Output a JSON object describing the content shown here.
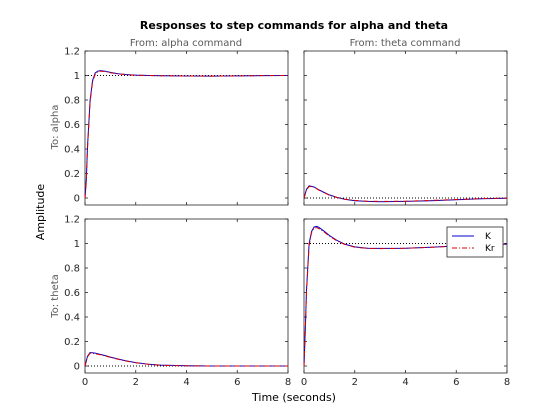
{
  "chart_data": {
    "type": "line",
    "title": "Responses to step commands for alpha and theta",
    "xlabel": "Time (seconds)",
    "ylabel": "Amplitude",
    "column_titles": [
      "From: alpha command",
      "From: theta command"
    ],
    "row_titles": [
      "To: alpha",
      "To: theta"
    ],
    "xlim": [
      0,
      8
    ],
    "xticks": [
      0,
      2,
      4,
      6,
      8
    ],
    "ylim": [
      -0.05,
      1.2
    ],
    "yticks": [
      0,
      0.2,
      0.4,
      0.6,
      0.8,
      1,
      1.2
    ],
    "grid": false,
    "legend": {
      "placement": "top-right of lower-right panel",
      "entries": [
        {
          "label": "K",
          "color": "#0000cc",
          "style": "solid"
        },
        {
          "label": "Kr",
          "color": "#dd0000",
          "style": "dashdot"
        }
      ]
    },
    "panels": [
      {
        "row": 0,
        "col": 0,
        "reference": 1,
        "series": [
          {
            "name": "K",
            "x": [
              0,
              0.05,
              0.1,
              0.2,
              0.3,
              0.4,
              0.5,
              0.6,
              0.8,
              1.0,
              1.3,
              1.6,
              2.0,
              2.5,
              3.0,
              4.0,
              5.0,
              6.0,
              7.0,
              8.0
            ],
            "y": [
              0,
              0.15,
              0.42,
              0.8,
              0.96,
              1.02,
              1.035,
              1.04,
              1.035,
              1.025,
              1.015,
              1.008,
              1.003,
              1.0,
              0.998,
              0.996,
              0.995,
              0.997,
              0.999,
              1.0
            ]
          },
          {
            "name": "Kr",
            "x": [
              0,
              0.05,
              0.1,
              0.2,
              0.3,
              0.4,
              0.5,
              0.6,
              0.8,
              1.0,
              1.3,
              1.6,
              2.0,
              2.5,
              3.0,
              4.0,
              5.0,
              6.0,
              7.0,
              8.0
            ],
            "y": [
              0,
              0.13,
              0.4,
              0.78,
              0.95,
              1.01,
              1.03,
              1.035,
              1.032,
              1.022,
              1.013,
              1.007,
              1.002,
              1.0,
              0.998,
              0.996,
              0.995,
              0.997,
              0.999,
              1.0
            ]
          }
        ]
      },
      {
        "row": 0,
        "col": 1,
        "reference": 0,
        "series": [
          {
            "name": "K",
            "x": [
              0,
              0.1,
              0.2,
              0.4,
              0.6,
              0.8,
              1.0,
              1.3,
              1.6,
              2.0,
              2.5,
              3.0,
              4.0,
              5.0,
              6.0,
              7.0,
              8.0
            ],
            "y": [
              0,
              0.07,
              0.1,
              0.09,
              0.065,
              0.045,
              0.025,
              0.005,
              -0.01,
              -0.022,
              -0.028,
              -0.03,
              -0.028,
              -0.022,
              -0.014,
              -0.006,
              -0.002
            ]
          },
          {
            "name": "Kr",
            "x": [
              0,
              0.1,
              0.2,
              0.4,
              0.6,
              0.8,
              1.0,
              1.3,
              1.6,
              2.0,
              2.5,
              3.0,
              4.0,
              5.0,
              6.0,
              7.0,
              8.0
            ],
            "y": [
              0,
              0.065,
              0.095,
              0.088,
              0.063,
              0.043,
              0.023,
              0.004,
              -0.01,
              -0.02,
              -0.026,
              -0.028,
              -0.026,
              -0.02,
              -0.012,
              -0.005,
              -0.001
            ]
          }
        ]
      },
      {
        "row": 1,
        "col": 0,
        "reference": 0,
        "series": [
          {
            "name": "K",
            "x": [
              0,
              0.1,
              0.2,
              0.4,
              0.6,
              0.8,
              1.0,
              1.3,
              1.6,
              2.0,
              2.5,
              3.0,
              4.0,
              5.0,
              6.0,
              7.0,
              8.0
            ],
            "y": [
              0,
              0.08,
              0.11,
              0.105,
              0.095,
              0.085,
              0.073,
              0.057,
              0.043,
              0.028,
              0.015,
              0.007,
              0.002,
              0.0,
              0.0,
              0.0,
              0.0
            ]
          },
          {
            "name": "Kr",
            "x": [
              0,
              0.1,
              0.2,
              0.4,
              0.6,
              0.8,
              1.0,
              1.3,
              1.6,
              2.0,
              2.5,
              3.0,
              4.0,
              5.0,
              6.0,
              7.0,
              8.0
            ],
            "y": [
              0,
              0.075,
              0.105,
              0.1,
              0.092,
              0.082,
              0.07,
              0.055,
              0.041,
              0.027,
              0.014,
              0.006,
              0.002,
              0.0,
              0.0,
              0.0,
              0.0
            ]
          }
        ]
      },
      {
        "row": 1,
        "col": 1,
        "reference": 1,
        "series": [
          {
            "name": "K",
            "x": [
              0,
              0.05,
              0.1,
              0.2,
              0.3,
              0.4,
              0.5,
              0.6,
              0.8,
              1.0,
              1.3,
              1.6,
              2.0,
              2.5,
              3.0,
              3.5,
              4.0,
              5.0,
              6.0,
              7.0,
              8.0
            ],
            "y": [
              0,
              0.3,
              0.62,
              1.0,
              1.1,
              1.135,
              1.14,
              1.13,
              1.1,
              1.065,
              1.025,
              0.995,
              0.972,
              0.962,
              0.96,
              0.96,
              0.962,
              0.97,
              0.98,
              0.99,
              0.995
            ]
          },
          {
            "name": "Kr",
            "x": [
              0,
              0.05,
              0.1,
              0.2,
              0.3,
              0.4,
              0.5,
              0.6,
              0.8,
              1.0,
              1.3,
              1.6,
              2.0,
              2.5,
              3.0,
              3.5,
              4.0,
              5.0,
              6.0,
              7.0,
              8.0
            ],
            "y": [
              0,
              0.28,
              0.6,
              0.98,
              1.09,
              1.125,
              1.13,
              1.12,
              1.093,
              1.06,
              1.022,
              0.993,
              0.97,
              0.96,
              0.958,
              0.959,
              0.961,
              0.969,
              0.979,
              0.989,
              0.994
            ]
          }
        ]
      }
    ]
  }
}
